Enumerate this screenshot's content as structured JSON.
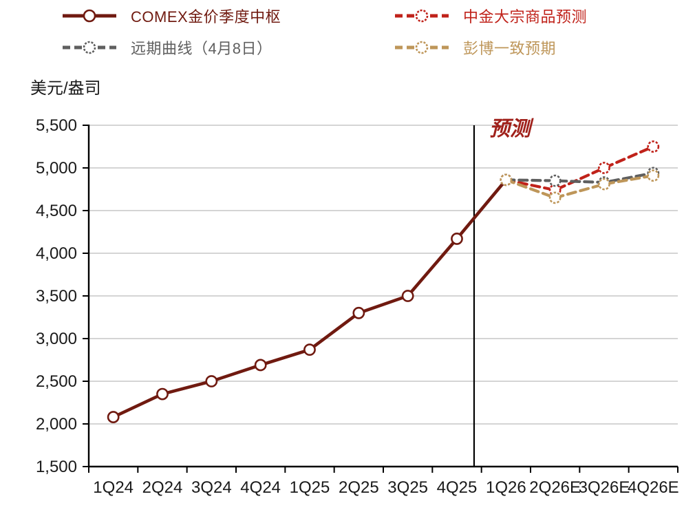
{
  "legend": {
    "items": [
      {
        "id": "comex",
        "label": "COMEX金价季度中枢"
      },
      {
        "id": "cicc",
        "label": "中金大宗商品预测"
      },
      {
        "id": "forward",
        "label": "远期曲线（4月8日）"
      },
      {
        "id": "bloomberg",
        "label": "彭博一致预期"
      }
    ]
  },
  "colors": {
    "comex": "#701A10",
    "cicc": "#C0221A",
    "forward": "#5F5F5F",
    "bloomberg": "#BE9659",
    "grid": "#C6C6C6",
    "axis": "#000000",
    "annotation": "#A0211B"
  },
  "chart_data": {
    "type": "line",
    "title": "",
    "xlabel": "",
    "ylabel": "美元/盎司",
    "ylim": [
      1500,
      5500
    ],
    "grid": "horizontal",
    "legend_position": "top",
    "y_ticks": {
      "values": [
        1500,
        2000,
        2500,
        3000,
        3500,
        4000,
        4500,
        5000,
        5500
      ],
      "labels": [
        "1,500",
        "2,000",
        "2,500",
        "3,000",
        "3,500",
        "4,000",
        "4,500",
        "5,000",
        "5,500"
      ]
    },
    "categories": [
      "1Q24",
      "2Q24",
      "3Q24",
      "4Q24",
      "1Q25",
      "2Q25",
      "3Q25",
      "4Q25",
      "1Q26",
      "2Q26E",
      "3Q26E",
      "4Q26E"
    ],
    "series": [
      {
        "id": "comex",
        "name": "COMEX金价季度中枢",
        "color_key": "comex",
        "style": "solid",
        "start": 0,
        "values": [
          2080,
          2350,
          2500,
          2690,
          2870,
          3300,
          3500,
          4170,
          4860
        ],
        "skip_last_marker": true
      },
      {
        "id": "cicc",
        "name": "中金大宗商品预测",
        "color_key": "cicc",
        "style": "dashed",
        "start": 8,
        "values": [
          4860,
          4740,
          5000,
          5250
        ]
      },
      {
        "id": "forward",
        "name": "远期曲线（4月8日）",
        "color_key": "forward",
        "style": "dashed",
        "start": 8,
        "values": [
          4860,
          4850,
          4830,
          4940
        ]
      },
      {
        "id": "bloomberg",
        "name": "彭博一致预期",
        "color_key": "bloomberg",
        "style": "dashed",
        "start": 8,
        "values": [
          4860,
          4650,
          4810,
          4910
        ]
      }
    ],
    "forecast_divider_after": "4Q25",
    "annotation": {
      "text": "预测"
    }
  }
}
